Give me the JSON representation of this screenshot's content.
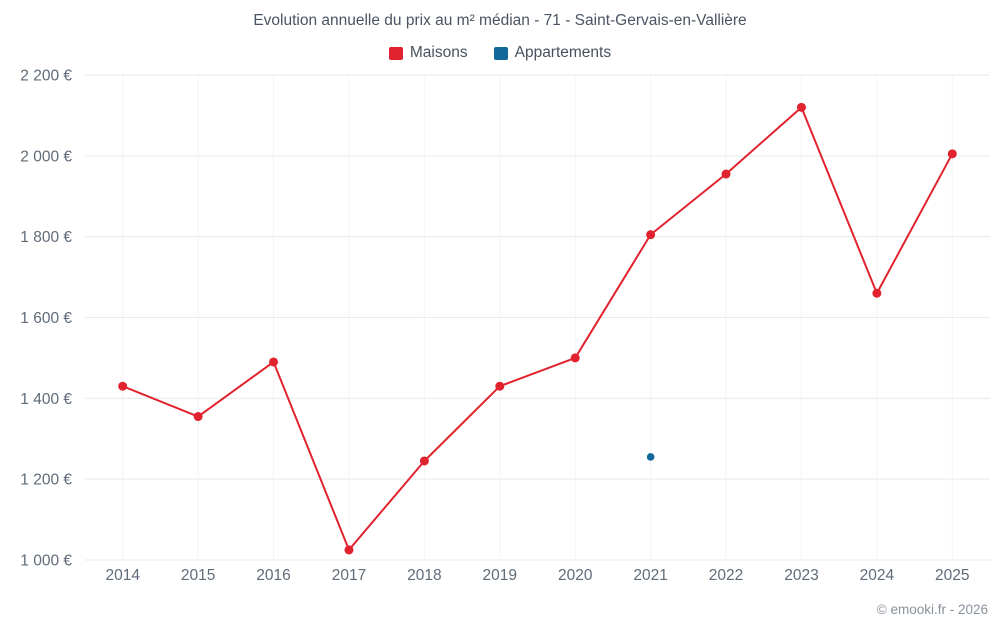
{
  "title": "Evolution annuelle du prix au m² médian - 71 - Saint-Gervais-en-Vallière",
  "legend": [
    {
      "label": "Maisons",
      "color": "#e0232e"
    },
    {
      "label": "Appartements",
      "color": "#13699c"
    }
  ],
  "footer": "© emooki.fr - 2026",
  "colors": {
    "maisons": "#e0232e",
    "appartements": "#13699c",
    "gridline": "#e8eaed",
    "vertical_gridline": "#f3f4f6",
    "tick_label": "#5f6b78"
  },
  "chart_data": {
    "type": "line",
    "title": "Evolution annuelle du prix au m² médian - 71 - Saint-Gervais-en-Vallière",
    "categories": [
      2014,
      2015,
      2016,
      2017,
      2018,
      2019,
      2020,
      2021,
      2022,
      2023,
      2024,
      2025
    ],
    "series": [
      {
        "name": "Maisons",
        "type": "line",
        "color": "#e0232e",
        "values": [
          1430,
          1355,
          1490,
          1025,
          1245,
          1430,
          1500,
          1805,
          1955,
          2120,
          1660,
          2005
        ]
      },
      {
        "name": "Appartements",
        "type": "scatter",
        "color": "#13699c",
        "points": [
          {
            "x": 2021,
            "y": 1255
          }
        ]
      }
    ],
    "xlabel": "",
    "ylabel": "",
    "ylim": [
      1000,
      2200
    ],
    "yticks": [
      1000,
      1200,
      1400,
      1600,
      1800,
      2000,
      2200
    ],
    "ytick_suffix": " €",
    "grid": true,
    "legend_position": "top"
  }
}
